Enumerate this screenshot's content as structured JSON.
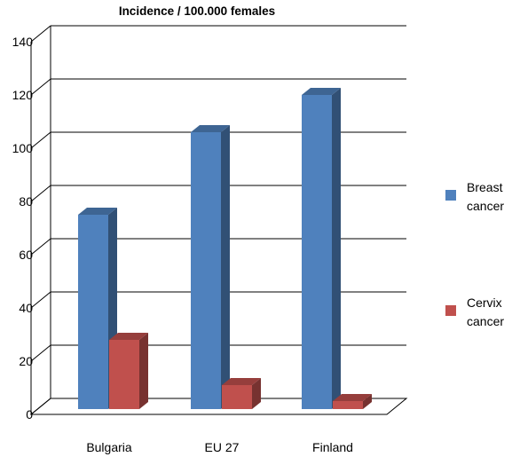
{
  "chart_data": {
    "type": "bar",
    "title": "Incidence / 100.000 females",
    "categories": [
      "Bulgaria",
      "EU 27",
      "Finland"
    ],
    "series": [
      {
        "name": "Breast cancer",
        "legend_lines": [
          "Breast",
          "cancer"
        ],
        "values": [
          75,
          106,
          120
        ],
        "color": "#4f81bd"
      },
      {
        "name": "Cervix cancer",
        "legend_lines": [
          "Cervix",
          "cancer"
        ],
        "values": [
          28,
          11,
          5
        ],
        "color": "#c0504d"
      }
    ],
    "ylim": [
      0,
      140
    ],
    "yticks": [
      0,
      20,
      40,
      60,
      80,
      100,
      120,
      140
    ],
    "grid": true,
    "legend": "right",
    "three_d": true
  }
}
